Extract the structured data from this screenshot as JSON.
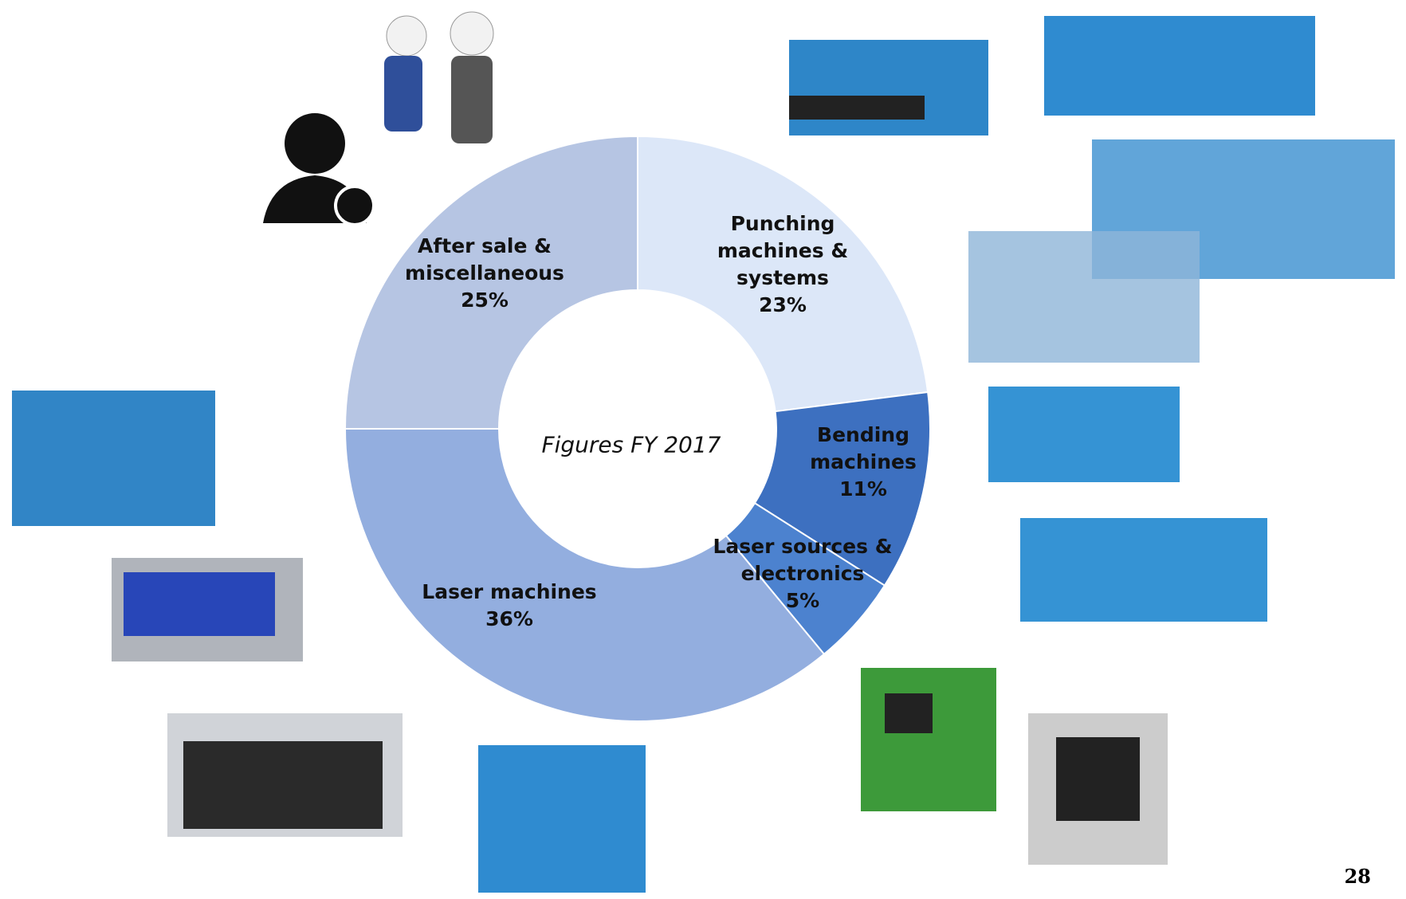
{
  "chart_data": {
    "type": "donut",
    "center_label": "Figures FY 2017",
    "categories": [
      "Punching machines & systems",
      "Bending machines",
      "Laser sources & electronics",
      "Laser machines",
      "After sale & miscellaneous"
    ],
    "values": [
      23,
      11,
      5,
      36,
      25
    ],
    "value_labels": [
      "23%",
      "11%",
      "5%",
      "36%",
      "25%"
    ],
    "colors": [
      "#dce7f8",
      "#3d70c0",
      "#4c82cf",
      "#93aedf",
      "#b6c5e3"
    ]
  },
  "page_number": "28"
}
